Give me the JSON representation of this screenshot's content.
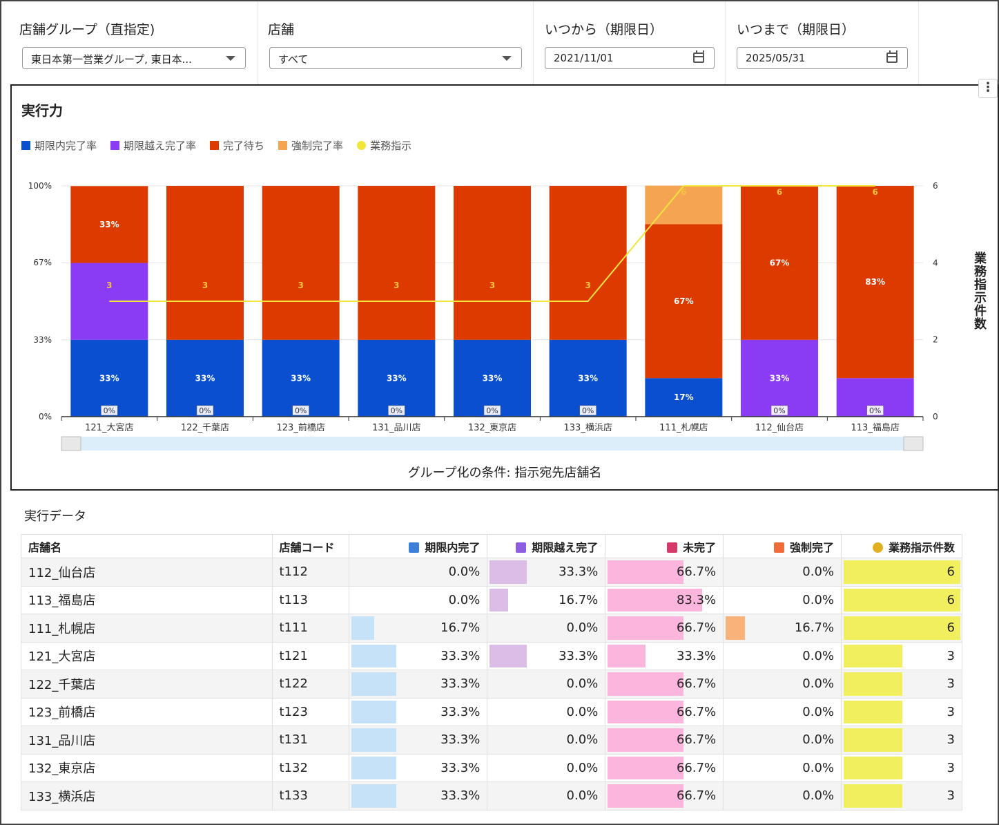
{
  "filters": {
    "group_label": "店舗グループ（直指定)",
    "group_value": "東日本第一営業グループ, 東日本...",
    "store_label": "店舗",
    "store_value": "すべて",
    "from_label": "いつから（期限日）",
    "from_value": "2021/11/01",
    "to_label": "いつまで（期限日）",
    "to_value": "2025/05/31"
  },
  "chart_panel": {
    "title": "実行力",
    "menu_icon": "more-vert-icon",
    "x_caption": "グループ化の条件: 指示宛先店舗名",
    "y2_title": "業務指示件数"
  },
  "chart_data": {
    "type": "bar",
    "stacked": true,
    "categories": [
      "121_大宮店",
      "122_千葉店",
      "123_前橋店",
      "131_品川店",
      "132_東京店",
      "133_横浜店",
      "111_札幌店",
      "112_仙台店",
      "113_福島店"
    ],
    "series": [
      {
        "name": "期限内完了率",
        "color": "#0a4fd0",
        "values": [
          33.3,
          33.3,
          33.3,
          33.3,
          33.3,
          33.3,
          16.7,
          0,
          0
        ],
        "labels": [
          "33%",
          "33%",
          "33%",
          "33%",
          "33%",
          "33%",
          "17%",
          "",
          ""
        ]
      },
      {
        "name": "期限越え完了率",
        "color": "#8a3cf5",
        "values": [
          33.3,
          0,
          0,
          0,
          0,
          0,
          0,
          33.3,
          16.7
        ],
        "labels": [
          "",
          "",
          "",
          "",
          "",
          "",
          "",
          "33%",
          ""
        ]
      },
      {
        "name": "完了待ち",
        "color": "#dd3a00",
        "values": [
          33.3,
          66.7,
          66.7,
          66.7,
          66.7,
          66.7,
          66.7,
          66.7,
          83.3
        ],
        "labels": [
          "33%",
          "",
          "",
          "",
          "",
          "",
          "67%",
          "67%",
          "83%"
        ]
      },
      {
        "name": "強制完了率",
        "color": "#f5a552",
        "values": [
          0,
          0,
          0,
          0,
          0,
          0,
          16.7,
          0,
          0
        ],
        "labels": [
          "",
          "",
          "",
          "",
          "",
          "",
          "",
          "",
          ""
        ]
      },
      {
        "name": "業務指示",
        "color": "#f2e63a",
        "type": "line",
        "axis": "right",
        "values": [
          3,
          3,
          3,
          3,
          3,
          3,
          6,
          6,
          6
        ]
      }
    ],
    "zero_labels": [
      "0%",
      "0%",
      "0%",
      "0%",
      "0%",
      "0%",
      "",
      "0%",
      "0%"
    ],
    "y_ticks": [
      "0%",
      "33%",
      "67%",
      "100%"
    ],
    "y_range": [
      0,
      100
    ],
    "y2_ticks": [
      "0",
      "2",
      "4",
      "6"
    ],
    "y2_range": [
      0,
      6
    ],
    "legend_position": "top-left",
    "grid": true
  },
  "table": {
    "title": "実行データ",
    "headers": {
      "store_name": "店舗名",
      "store_code": "店舗コード",
      "ontime": "期限内完了",
      "late": "期限越え完了",
      "incomplete": "未完了",
      "forced": "強制完了",
      "count": "業務指示件数"
    },
    "colors": {
      "ontime": "#c5e2f8",
      "late": "#dcbde8",
      "incomplete": "#fcb6de",
      "forced": "#f8b27a",
      "count": "#f2ef5f"
    },
    "rows": [
      {
        "name": "112_仙台店",
        "code": "t112",
        "ontime": "0.0%",
        "ontime_v": 0,
        "late": "33.3%",
        "late_v": 33.3,
        "incomplete": "66.7%",
        "incomplete_v": 66.7,
        "forced": "0.0%",
        "forced_v": 0,
        "count": "6",
        "count_v": 6
      },
      {
        "name": "113_福島店",
        "code": "t113",
        "ontime": "0.0%",
        "ontime_v": 0,
        "late": "16.7%",
        "late_v": 16.7,
        "incomplete": "83.3%",
        "incomplete_v": 83.3,
        "forced": "0.0%",
        "forced_v": 0,
        "count": "6",
        "count_v": 6
      },
      {
        "name": "111_札幌店",
        "code": "t111",
        "ontime": "16.7%",
        "ontime_v": 16.7,
        "late": "0.0%",
        "late_v": 0,
        "incomplete": "66.7%",
        "incomplete_v": 66.7,
        "forced": "16.7%",
        "forced_v": 16.7,
        "count": "6",
        "count_v": 6
      },
      {
        "name": "121_大宮店",
        "code": "t121",
        "ontime": "33.3%",
        "ontime_v": 33.3,
        "late": "33.3%",
        "late_v": 33.3,
        "incomplete": "33.3%",
        "incomplete_v": 33.3,
        "forced": "0.0%",
        "forced_v": 0,
        "count": "3",
        "count_v": 3
      },
      {
        "name": "122_千葉店",
        "code": "t122",
        "ontime": "33.3%",
        "ontime_v": 33.3,
        "late": "0.0%",
        "late_v": 0,
        "incomplete": "66.7%",
        "incomplete_v": 66.7,
        "forced": "0.0%",
        "forced_v": 0,
        "count": "3",
        "count_v": 3
      },
      {
        "name": "123_前橋店",
        "code": "t123",
        "ontime": "33.3%",
        "ontime_v": 33.3,
        "late": "0.0%",
        "late_v": 0,
        "incomplete": "66.7%",
        "incomplete_v": 66.7,
        "forced": "0.0%",
        "forced_v": 0,
        "count": "3",
        "count_v": 3
      },
      {
        "name": "131_品川店",
        "code": "t131",
        "ontime": "33.3%",
        "ontime_v": 33.3,
        "late": "0.0%",
        "late_v": 0,
        "incomplete": "66.7%",
        "incomplete_v": 66.7,
        "forced": "0.0%",
        "forced_v": 0,
        "count": "3",
        "count_v": 3
      },
      {
        "name": "132_東京店",
        "code": "t132",
        "ontime": "33.3%",
        "ontime_v": 33.3,
        "late": "0.0%",
        "late_v": 0,
        "incomplete": "66.7%",
        "incomplete_v": 66.7,
        "forced": "0.0%",
        "forced_v": 0,
        "count": "3",
        "count_v": 3
      },
      {
        "name": "133_横浜店",
        "code": "t133",
        "ontime": "33.3%",
        "ontime_v": 33.3,
        "late": "0.0%",
        "late_v": 0,
        "incomplete": "66.7%",
        "incomplete_v": 66.7,
        "forced": "0.0%",
        "forced_v": 0,
        "count": "3",
        "count_v": 3
      }
    ]
  }
}
